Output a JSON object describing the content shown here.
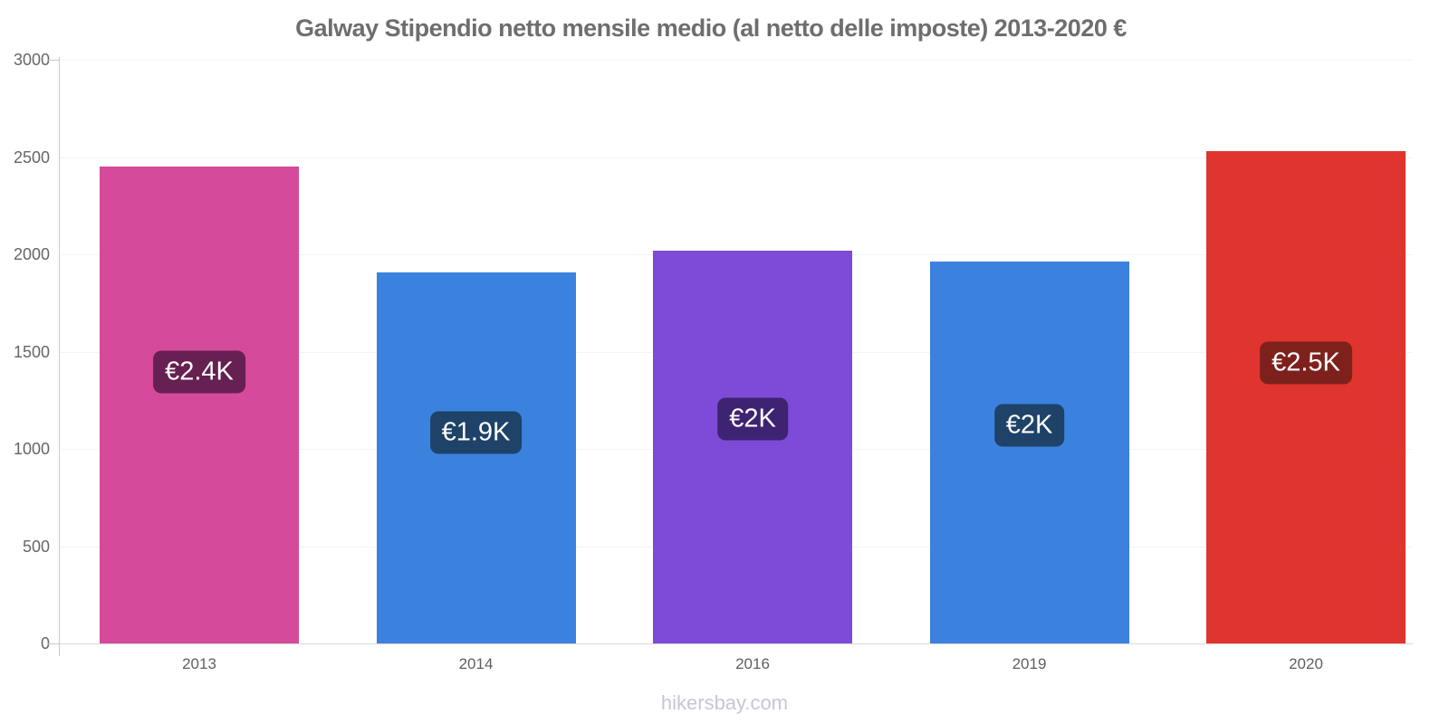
{
  "page": {
    "title": "Galway Stipendio netto mensile medio (al netto delle imposte) 2013-2020 €",
    "title_color": "#6e6e6e",
    "watermark": "hikersbay.com",
    "watermark_color": "#c6c6d8"
  },
  "chart_data": {
    "type": "bar",
    "title": "Galway Stipendio netto mensile medio (al netto delle imposte) 2013-2020 €",
    "xlabel": "",
    "ylabel": "",
    "ylim": [
      0,
      3000
    ],
    "yticks": [
      0,
      500,
      1000,
      1500,
      2000,
      2500,
      3000
    ],
    "grid": true,
    "legend_position": "none",
    "categories": [
      "2013",
      "2014",
      "2016",
      "2019",
      "2020"
    ],
    "values": [
      2450,
      1905,
      2020,
      1965,
      2530
    ],
    "bar_labels": [
      "€2.4K",
      "€1.9K",
      "€2K",
      "€2K",
      "€2.5K"
    ],
    "bar_colors": [
      "#d64a9b",
      "#3b82de",
      "#7d4bd8",
      "#3b82de",
      "#e0342f"
    ],
    "label_bg_colors": [
      "#662051",
      "#1e4268",
      "#3e2372",
      "#1e4268",
      "#7e211d"
    ],
    "axis_color": "#c9c9c9",
    "tick_label_color": "#666666",
    "x_tick_label_color": "#5f5f5f",
    "gridline_color": "#f4f4f4",
    "baseline_color": "#d9d9d9"
  }
}
